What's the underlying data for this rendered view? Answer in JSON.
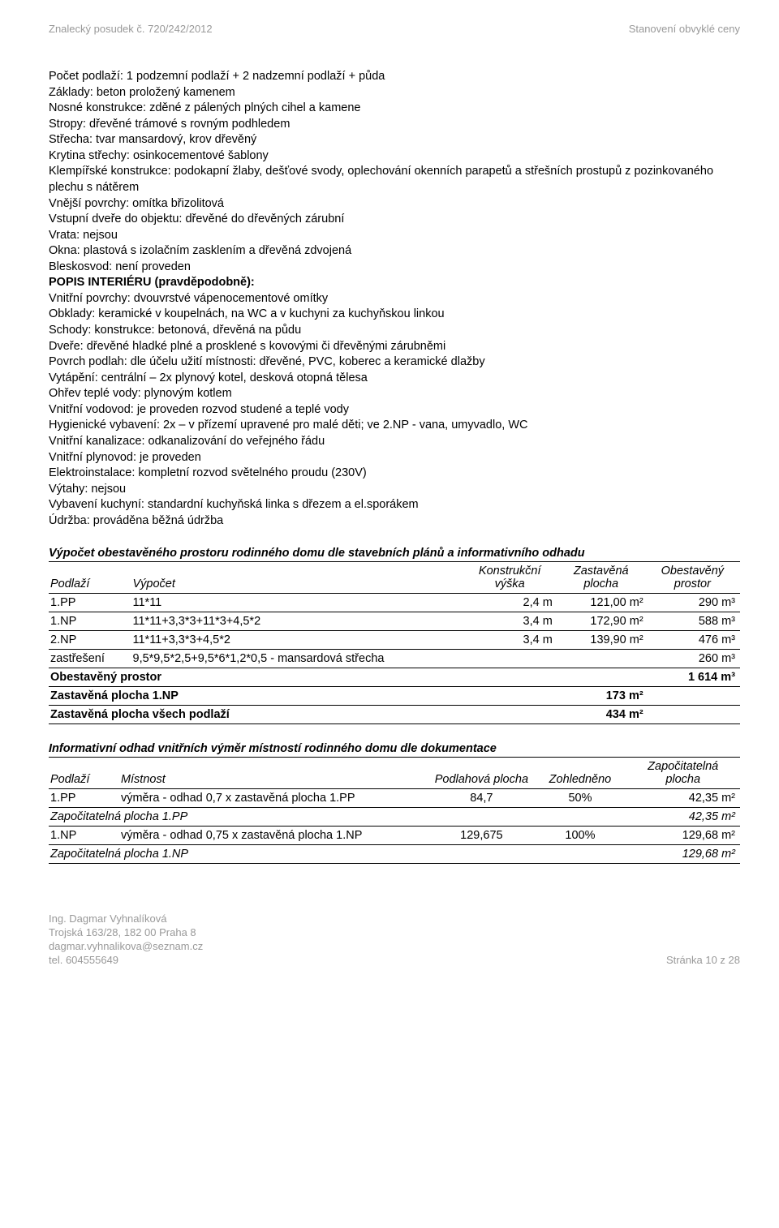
{
  "header": {
    "left": "Znalecký posudek č. 720/242/2012",
    "right": "Stanovení obvyklé ceny"
  },
  "body_block1": [
    "Počet podlaží: 1 podzemní podlaží + 2 nadzemní podlaží + půda",
    "Základy: beton proložený kamenem",
    "Nosné konstrukce: zděné z pálených plných cihel a kamene",
    "Stropy: dřevěné trámové s rovným podhledem",
    "Střecha: tvar mansardový, krov dřevěný",
    "Krytina střechy: osinkocementové šablony",
    "Klempířské konstrukce: podokapní žlaby, dešťové svody, oplechování okenních parapetů a střešních prostupů z pozinkovaného plechu s nátěrem",
    "Vnější povrchy: omítka břizolitová",
    "Vstupní dveře do objektu: dřevěné do dřevěných zárubní",
    "Vrata: nejsou",
    "Okna: plastová s izolačním zasklením a dřevěná zdvojená",
    "Bleskosvod: není proveden"
  ],
  "body_block2_heading": "POPIS INTERIÉRU (pravděpodobně):",
  "body_block2": [
    "Vnitřní povrchy: dvouvrstvé vápenocementové omítky",
    "Obklady: keramické v koupelnách, na WC a v kuchyni za kuchyňskou linkou",
    "Schody: konstrukce: betonová, dřevěná na půdu",
    "Dveře: dřevěné hladké plné a prosklené s kovovými či dřevěnými zárubněmi",
    "Povrch podlah: dle účelu užití místnosti: dřevěné, PVC, koberec a keramické dlažby",
    "Vytápění: centrální – 2x plynový kotel, desková otopná tělesa",
    "Ohřev teplé vody: plynovým kotlem",
    "Vnitřní vodovod: je proveden rozvod studené a teplé vody",
    "Hygienické vybavení: 2x – v přízemí upravené pro malé děti; ve 2.NP - vana, umyvadlo, WC",
    "Vnitřní kanalizace: odkanalizování do veřejného řádu",
    "Vnitřní plynovod: je proveden",
    "Elektroinstalace: kompletní rozvod světelného proudu (230V)",
    "Výtahy: nejsou",
    "Vybavení kuchyní: standardní kuchyňská linka s dřezem a el.sporákem",
    "Údržba: prováděna běžná údržba"
  ],
  "table1": {
    "heading": "Výpočet obestavěného prostoru rodinného domu dle stavebních plánů a informativního odhadu",
    "head": [
      "Podlaží",
      "Výpočet",
      "Konstrukční výška",
      "Zastavěná plocha",
      "Obestavěný prostor"
    ],
    "rows": [
      {
        "c": [
          "1.PP",
          "11*11",
          "2,4  m",
          "121,00  m²",
          "290  m³"
        ]
      },
      {
        "c": [
          "1.NP",
          "11*11+3,3*3+11*3+4,5*2",
          "3,4  m",
          "172,90  m²",
          "588  m³"
        ]
      },
      {
        "c": [
          "2.NP",
          "11*11+3,3*3+4,5*2",
          "3,4  m",
          "139,90  m²",
          "476  m³"
        ]
      },
      {
        "c": [
          "zastřešení",
          "9,5*9,5*2,5+9,5*6*1,2*0,5 - mansardová střecha",
          "",
          "",
          "260  m³"
        ]
      }
    ],
    "summary": [
      {
        "label": "Obestavěný prostor",
        "v1": "",
        "v2": "1 614  m³",
        "bold": true
      },
      {
        "label": "Zastavěná plocha 1.NP",
        "v1": "173  m²",
        "v2": "",
        "bold": true
      },
      {
        "label": "Zastavěná plocha všech podlaží",
        "v1": "434  m²",
        "v2": "",
        "bold": true
      }
    ]
  },
  "table2": {
    "heading": "Informativní odhad vnitřních výměr místností rodinného domu dle dokumentace",
    "head": [
      "Podlaží",
      "Místnost",
      "Podlahová plocha",
      "Zohledněno",
      "Započitatelná plocha"
    ],
    "rows": [
      {
        "c": [
          "1.PP",
          "výměra - odhad 0,7 x zastavěná plocha 1.PP",
          "84,7",
          "50%",
          "42,35  m²"
        ],
        "ital": false
      },
      {
        "c": [
          "Započitatelná plocha 1.PP",
          "",
          "",
          "",
          "42,35  m²"
        ],
        "ital": true,
        "span": 4
      },
      {
        "c": [
          "1.NP",
          "výměra - odhad 0,75 x zastavěná plocha 1.NP",
          "129,675",
          "100%",
          "129,68  m²"
        ],
        "ital": false
      },
      {
        "c": [
          "Započitatelná plocha 1.NP",
          "",
          "",
          "",
          "129,68  m²"
        ],
        "ital": true,
        "span": 4
      }
    ]
  },
  "footer": {
    "left": [
      "Ing. Dagmar Vyhnalíková",
      "Trojská 163/28, 182 00 Praha 8",
      "dagmar.vyhnalikova@seznam.cz",
      "tel. 604555649"
    ],
    "right": "Stránka 10 z 28"
  }
}
